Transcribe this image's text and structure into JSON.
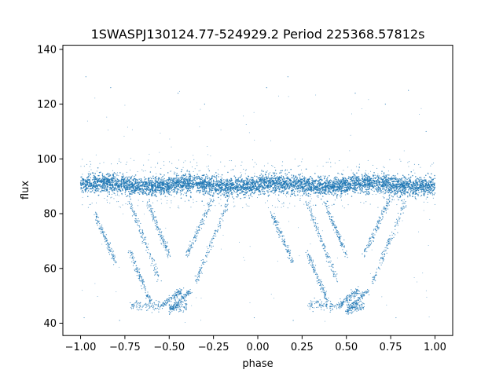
{
  "chart_data": {
    "type": "scatter",
    "title": "1SWASPJ130124.77-524929.2 Period 225368.57812s",
    "xlabel": "phase",
    "ylabel": "flux",
    "xlim": [
      -1.1,
      1.1
    ],
    "ylim": [
      35.5,
      141.5
    ],
    "x_ticks": [
      -1.0,
      -0.75,
      -0.5,
      -0.25,
      0.0,
      0.25,
      0.5,
      0.75,
      1.0
    ],
    "x_tick_labels": [
      "−1.00",
      "−0.75",
      "−0.50",
      "−0.25",
      "0.00",
      "0.25",
      "0.50",
      "0.75",
      "1.00"
    ],
    "y_ticks": [
      40,
      60,
      80,
      100,
      120,
      140
    ],
    "y_tick_labels": [
      "40",
      "60",
      "80",
      "100",
      "120",
      "140"
    ],
    "grid": false,
    "legend": "none",
    "series_color": "#1f77b4",
    "baseline_band": {
      "phase_range": [
        -1.0,
        1.0
      ],
      "flux_center": 90.5,
      "flux_spread": 3.0
    },
    "scatter_range": {
      "flux_low": 82,
      "flux_high": 100
    },
    "dip_tracks": [
      {
        "from": [
          -0.92,
          80
        ],
        "to": [
          -0.8,
          62
        ]
      },
      {
        "from": [
          -0.72,
          66
        ],
        "to": [
          -0.6,
          47
        ]
      },
      {
        "from": [
          -0.72,
          84
        ],
        "to": [
          -0.55,
          55
        ]
      },
      {
        "from": [
          -0.62,
          84
        ],
        "to": [
          -0.5,
          65
        ]
      },
      {
        "from": [
          -0.55,
          46
        ],
        "to": [
          -0.43,
          52
        ]
      },
      {
        "from": [
          -0.5,
          44
        ],
        "to": [
          -0.38,
          52
        ]
      },
      {
        "from": [
          -0.35,
          55
        ],
        "to": [
          -0.17,
          84
        ]
      },
      {
        "from": [
          -0.4,
          65
        ],
        "to": [
          -0.25,
          86
        ]
      },
      {
        "from": [
          0.08,
          80
        ],
        "to": [
          0.2,
          62
        ]
      },
      {
        "from": [
          0.28,
          66
        ],
        "to": [
          0.4,
          47
        ]
      },
      {
        "from": [
          0.28,
          84
        ],
        "to": [
          0.45,
          55
        ]
      },
      {
        "from": [
          0.38,
          84
        ],
        "to": [
          0.5,
          65
        ]
      },
      {
        "from": [
          0.45,
          46
        ],
        "to": [
          0.57,
          52
        ]
      },
      {
        "from": [
          0.5,
          44
        ],
        "to": [
          0.62,
          52
        ]
      },
      {
        "from": [
          0.65,
          55
        ],
        "to": [
          0.83,
          84
        ]
      },
      {
        "from": [
          0.6,
          65
        ],
        "to": [
          0.75,
          86
        ]
      }
    ],
    "dip_floors": [
      {
        "phase_range": [
          -0.72,
          -0.55
        ],
        "flux": 45.5
      },
      {
        "phase_range": [
          -0.5,
          -0.4
        ],
        "flux": 45
      },
      {
        "phase_range": [
          0.28,
          0.45
        ],
        "flux": 45.5
      },
      {
        "phase_range": [
          0.5,
          0.6
        ],
        "flux": 45
      }
    ],
    "outliers": [
      [
        -0.97,
        130
      ],
      [
        -0.83,
        126
      ],
      [
        -0.45,
        124
      ],
      [
        -0.3,
        120
      ],
      [
        0.05,
        126
      ],
      [
        0.17,
        130
      ],
      [
        0.55,
        124
      ],
      [
        0.72,
        120
      ],
      [
        0.85,
        125
      ],
      [
        0.95,
        110
      ],
      [
        -0.98,
        42
      ],
      [
        -0.02,
        42
      ],
      [
        0.2,
        41
      ],
      [
        0.78,
        42
      ],
      [
        -0.78,
        41
      ]
    ]
  }
}
